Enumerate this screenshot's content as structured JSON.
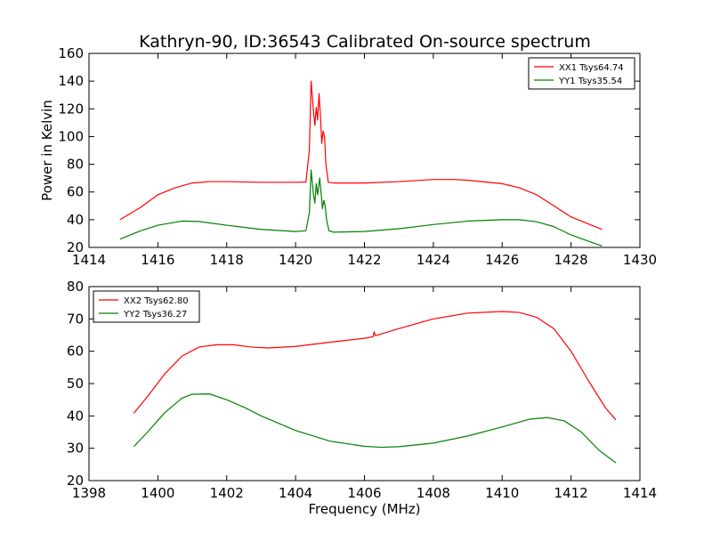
{
  "title": "Kathryn-90, ID:36543 Calibrated On-source spectrum",
  "colors": {
    "xx": "#ff0000",
    "yy": "#008000"
  },
  "chart_data": [
    {
      "type": "line",
      "xlabel": "",
      "ylabel": "Power in Kelvin",
      "xlim": [
        1414,
        1430
      ],
      "ylim": [
        20,
        160
      ],
      "xticks": [
        1414,
        1416,
        1418,
        1420,
        1422,
        1424,
        1426,
        1428,
        1430
      ],
      "yticks": [
        20,
        40,
        60,
        80,
        100,
        120,
        140,
        160
      ],
      "legend_position": "top-right",
      "series": [
        {
          "name": "XX1 Tsys64.74",
          "color": "#ff0000",
          "points": [
            [
              1414.9,
              40
            ],
            [
              1415.5,
              49
            ],
            [
              1416,
              58
            ],
            [
              1416.5,
              63
            ],
            [
              1417,
              66.5
            ],
            [
              1417.5,
              67.5
            ],
            [
              1418,
              67.5
            ],
            [
              1419,
              67
            ],
            [
              1420,
              67
            ],
            [
              1420.3,
              67.2
            ],
            [
              1420.4,
              90
            ],
            [
              1420.45,
              140
            ],
            [
              1420.52,
              118
            ],
            [
              1420.56,
              108
            ],
            [
              1420.6,
              121
            ],
            [
              1420.64,
              112
            ],
            [
              1420.68,
              131
            ],
            [
              1420.72,
              116
            ],
            [
              1420.76,
              95
            ],
            [
              1420.8,
              104
            ],
            [
              1420.84,
              100
            ],
            [
              1420.88,
              80
            ],
            [
              1420.95,
              67
            ],
            [
              1421.1,
              66.5
            ],
            [
              1422,
              66.5
            ],
            [
              1423,
              67.5
            ],
            [
              1424,
              69
            ],
            [
              1424.6,
              69
            ],
            [
              1425,
              68.5
            ],
            [
              1426,
              66
            ],
            [
              1426.5,
              63
            ],
            [
              1427,
              58
            ],
            [
              1427.5,
              50
            ],
            [
              1428,
              42
            ],
            [
              1428.5,
              37
            ],
            [
              1428.9,
              33
            ]
          ]
        },
        {
          "name": "YY1 Tsys35.54",
          "color": "#008000",
          "points": [
            [
              1414.9,
              26
            ],
            [
              1415.5,
              32
            ],
            [
              1416,
              36
            ],
            [
              1416.7,
              39
            ],
            [
              1417.2,
              38.7
            ],
            [
              1418,
              36
            ],
            [
              1419,
              33
            ],
            [
              1420,
              31.5
            ],
            [
              1420.3,
              32
            ],
            [
              1420.4,
              45
            ],
            [
              1420.45,
              76
            ],
            [
              1420.52,
              58
            ],
            [
              1420.56,
              52
            ],
            [
              1420.6,
              66
            ],
            [
              1420.64,
              58
            ],
            [
              1420.7,
              70
            ],
            [
              1420.74,
              60
            ],
            [
              1420.78,
              48
            ],
            [
              1420.82,
              54
            ],
            [
              1420.86,
              50
            ],
            [
              1420.9,
              40
            ],
            [
              1420.97,
              32
            ],
            [
              1421.1,
              31
            ],
            [
              1422,
              31.5
            ],
            [
              1423,
              33.5
            ],
            [
              1424,
              36.5
            ],
            [
              1425,
              39
            ],
            [
              1426,
              40
            ],
            [
              1426.5,
              40
            ],
            [
              1427,
              38.5
            ],
            [
              1427.5,
              35
            ],
            [
              1428,
              29
            ],
            [
              1428.5,
              24.5
            ],
            [
              1428.9,
              21
            ]
          ]
        }
      ]
    },
    {
      "type": "line",
      "xlabel": "Frequency (MHz)",
      "ylabel": "",
      "xlim": [
        1398,
        1414
      ],
      "ylim": [
        20,
        80
      ],
      "xticks": [
        1398,
        1400,
        1402,
        1404,
        1406,
        1408,
        1410,
        1412,
        1414
      ],
      "yticks": [
        20,
        30,
        40,
        50,
        60,
        70,
        80
      ],
      "legend_position": "top-left",
      "series": [
        {
          "name": "XX2 Tsys62.80",
          "color": "#ff0000",
          "points": [
            [
              1399.3,
              40.8
            ],
            [
              1399.7,
              46
            ],
            [
              1400.2,
              53
            ],
            [
              1400.7,
              58.5
            ],
            [
              1401.2,
              61.3
            ],
            [
              1401.7,
              62
            ],
            [
              1402.2,
              62
            ],
            [
              1402.7,
              61.3
            ],
            [
              1403.2,
              61
            ],
            [
              1404,
              61.5
            ],
            [
              1405,
              62.8
            ],
            [
              1406,
              64
            ],
            [
              1406.25,
              64.5
            ],
            [
              1406.28,
              66
            ],
            [
              1406.32,
              64.8
            ],
            [
              1407,
              67
            ],
            [
              1408,
              70
            ],
            [
              1409,
              71.8
            ],
            [
              1410,
              72.3
            ],
            [
              1410.5,
              72
            ],
            [
              1411,
              70.5
            ],
            [
              1411.5,
              67
            ],
            [
              1412,
              60
            ],
            [
              1412.5,
              51
            ],
            [
              1413,
              42.5
            ],
            [
              1413.3,
              38.8
            ]
          ]
        },
        {
          "name": "YY2 Tsys36.27",
          "color": "#008000",
          "points": [
            [
              1399.3,
              30.5
            ],
            [
              1399.7,
              35
            ],
            [
              1400.2,
              41
            ],
            [
              1400.7,
              45.5
            ],
            [
              1401,
              46.7
            ],
            [
              1401.5,
              46.8
            ],
            [
              1402,
              45
            ],
            [
              1402.5,
              42.7
            ],
            [
              1403,
              40
            ],
            [
              1404,
              35.5
            ],
            [
              1405,
              32.2
            ],
            [
              1406,
              30.6
            ],
            [
              1406.5,
              30.3
            ],
            [
              1407,
              30.5
            ],
            [
              1408,
              31.6
            ],
            [
              1409,
              33.8
            ],
            [
              1410,
              36.6
            ],
            [
              1410.8,
              39
            ],
            [
              1411.3,
              39.5
            ],
            [
              1411.8,
              38.5
            ],
            [
              1412.3,
              35
            ],
            [
              1412.8,
              29.5
            ],
            [
              1413.3,
              25.5
            ]
          ]
        }
      ]
    }
  ]
}
